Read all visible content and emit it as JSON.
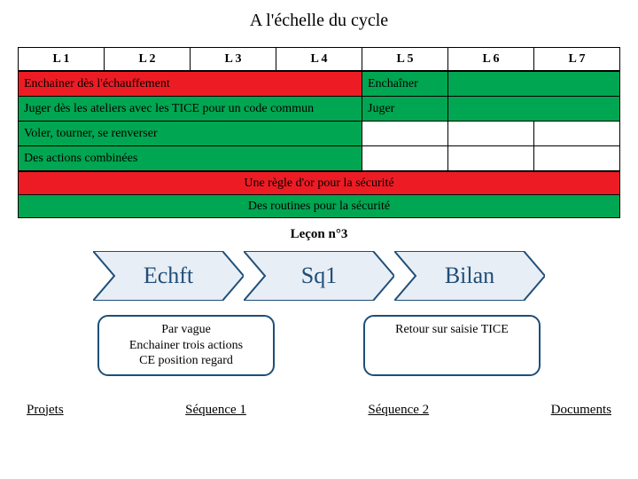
{
  "title": "A l'échelle du cycle",
  "colors": {
    "green": "#00a651",
    "red": "#ed1c24",
    "white": "#ffffff",
    "rowsep": "#000000",
    "chev_fill": "#e8eef5",
    "chev_stroke": "#1f4e79",
    "chev_text": "#1f4e79"
  },
  "layout": {
    "cols": 7,
    "leftSpan": 4,
    "rightSpan": 3
  },
  "header": [
    "L 1",
    "L 2",
    "L 3",
    "L 4",
    "L 5",
    "L 6",
    "L 7"
  ],
  "splitRows": [
    {
      "left_bg": "red",
      "left": "Enchainer dès l'échauffement",
      "right_bg": "green",
      "right": "Enchaîner"
    },
    {
      "left_bg": "green",
      "left": "Juger dès les ateliers avec les TICE pour un code commun",
      "right_bg": "green",
      "right": "Juger"
    },
    {
      "left_bg": "green",
      "left": "Voler, tourner, se renverser",
      "right_bg": "white",
      "right": ""
    },
    {
      "left_bg": "green",
      "left": "Des actions combinées",
      "right_bg": "white",
      "right": ""
    }
  ],
  "fullRows": [
    {
      "bg": "red",
      "text": "Une règle d'or pour la sécurité"
    },
    {
      "bg": "green",
      "text": "Des routines pour la sécurité"
    }
  ],
  "lessonLabel": "Leçon n°3",
  "chevrons": [
    "Echft",
    "Sq1",
    "Bilan"
  ],
  "boxes": [
    "Par vague\nEnchainer trois actions\nCE position regard",
    "Retour sur saisie TICE"
  ],
  "links": [
    "Projets",
    "Séquence 1",
    "Séquence 2",
    "Documents"
  ]
}
